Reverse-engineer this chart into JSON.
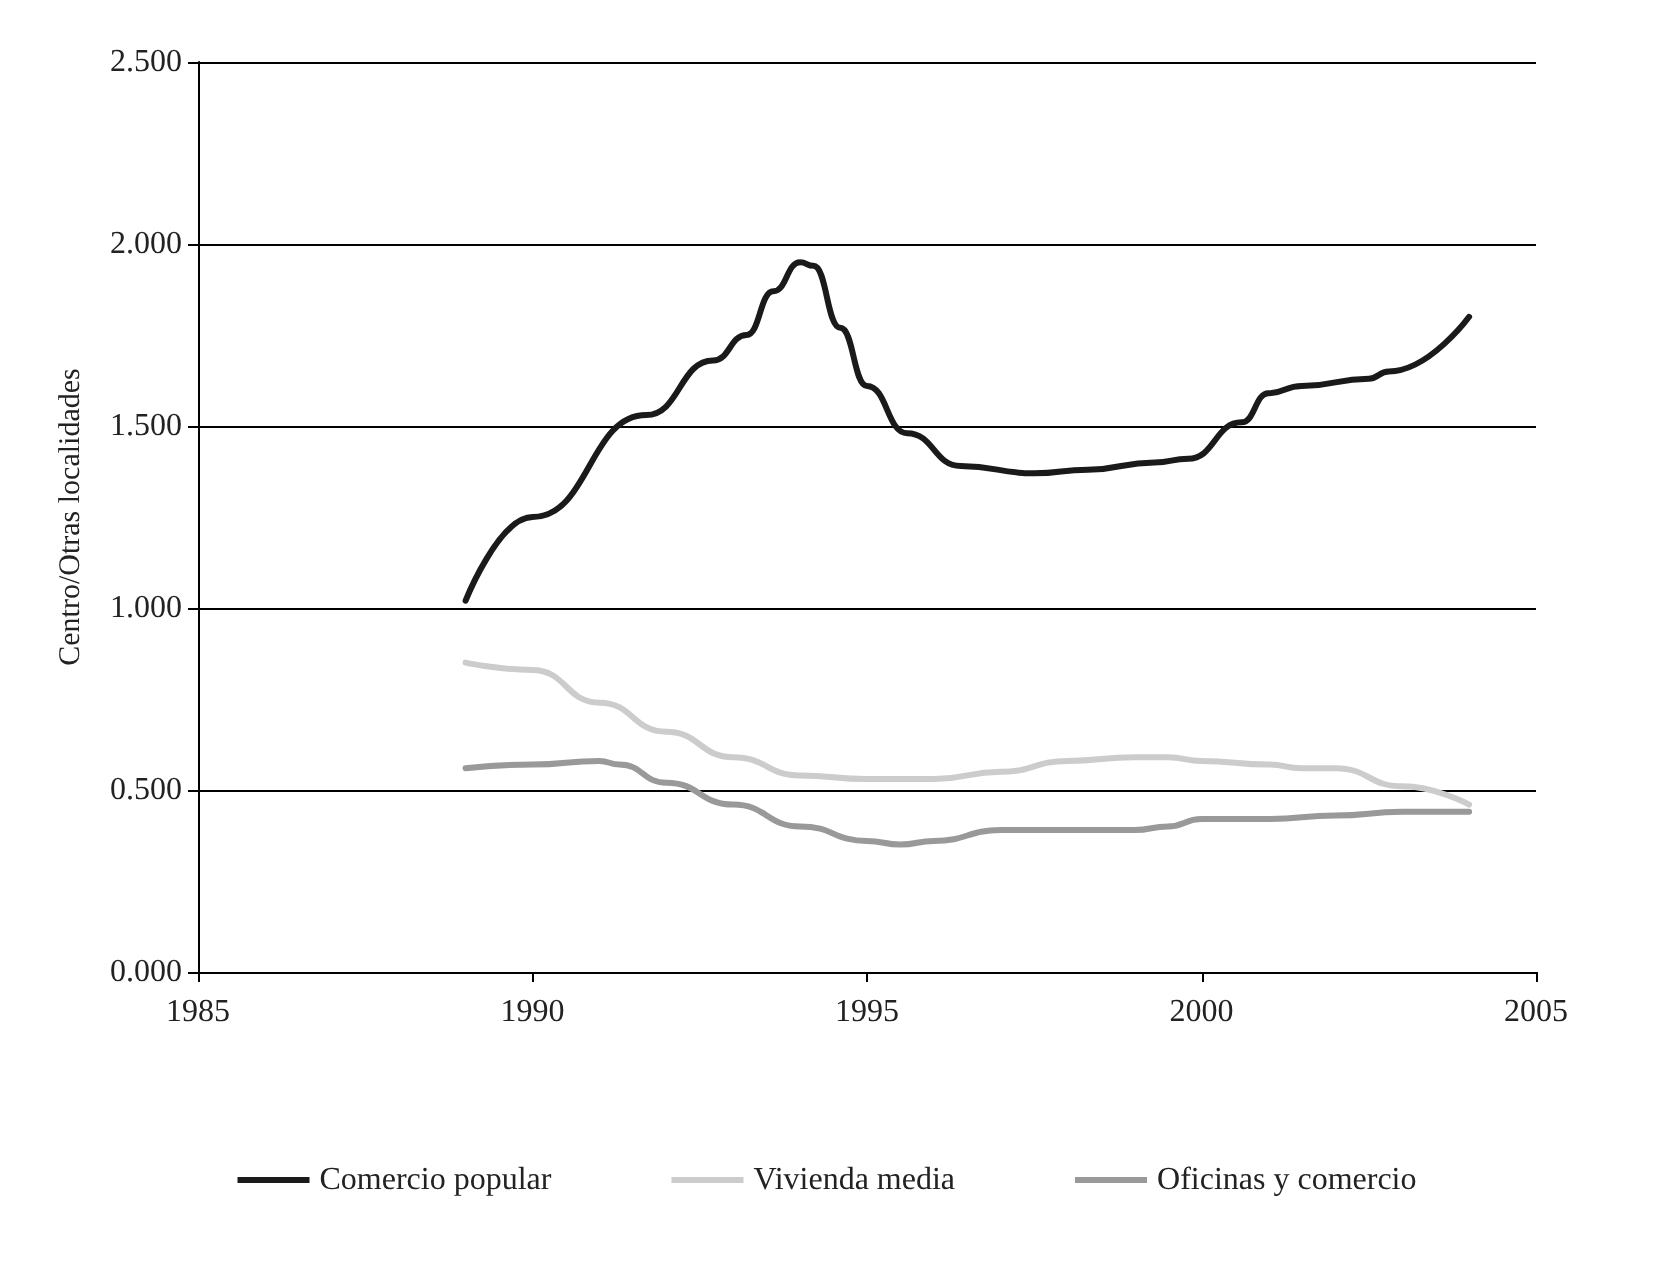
{
  "chart_data": {
    "type": "line",
    "ylabel": "Centro/Otras localidades",
    "xlim": [
      1985,
      2005
    ],
    "xticks": [
      1985,
      1990,
      1995,
      2000,
      2005
    ],
    "ylim": [
      0,
      2.5
    ],
    "yticks": [
      {
        "value": 0,
        "label": "0.000"
      },
      {
        "value": 0.5,
        "label": "0.500"
      },
      {
        "value": 1,
        "label": "1.000"
      },
      {
        "value": 1.5,
        "label": "1.500"
      },
      {
        "value": 2,
        "label": "2.000"
      },
      {
        "value": 2.5,
        "label": "2.500"
      }
    ],
    "grid": "y",
    "legend": "bottom",
    "marker": "none",
    "line_style": "solid",
    "series": [
      {
        "name": "Comercio popular",
        "color": "#1a1a1a",
        "x": [
          1989,
          1990,
          1991.7,
          1992.7,
          1993.2,
          1993.6,
          1994,
          1994.2,
          1994.6,
          1995,
          1995.6,
          1996.4,
          1997.5,
          1998.3,
          1999.3,
          1999.8,
          2000.6,
          2001,
          2001.5,
          2002.5,
          2002.8,
          2004
        ],
        "values": [
          1.02,
          1.25,
          1.53,
          1.68,
          1.75,
          1.87,
          1.95,
          1.94,
          1.77,
          1.61,
          1.48,
          1.39,
          1.37,
          1.38,
          1.4,
          1.41,
          1.51,
          1.59,
          1.61,
          1.63,
          1.65,
          1.8
        ]
      },
      {
        "name": "Vivienda media",
        "color": "#cccccc",
        "x": [
          1989,
          1990,
          1991,
          1992,
          1993,
          1994,
          1995,
          1996,
          1997,
          1998,
          1999,
          1999.5,
          2000,
          2001,
          2001.5,
          2002,
          2003,
          2004
        ],
        "values": [
          0.85,
          0.83,
          0.74,
          0.66,
          0.59,
          0.54,
          0.53,
          0.53,
          0.55,
          0.58,
          0.59,
          0.59,
          0.58,
          0.57,
          0.56,
          0.56,
          0.51,
          0.46
        ]
      },
      {
        "name": "Oficinas y comercio",
        "color": "#999999",
        "x": [
          1989,
          1990,
          1991,
          1991.3,
          1992,
          1993,
          1994,
          1995,
          1995.5,
          1996,
          1997,
          1998,
          1999,
          1999.5,
          2000,
          2001,
          2002,
          2003,
          2004
        ],
        "values": [
          0.56,
          0.57,
          0.58,
          0.57,
          0.52,
          0.46,
          0.4,
          0.36,
          0.35,
          0.36,
          0.39,
          0.39,
          0.39,
          0.4,
          0.42,
          0.42,
          0.43,
          0.44,
          0.44
        ]
      }
    ]
  }
}
